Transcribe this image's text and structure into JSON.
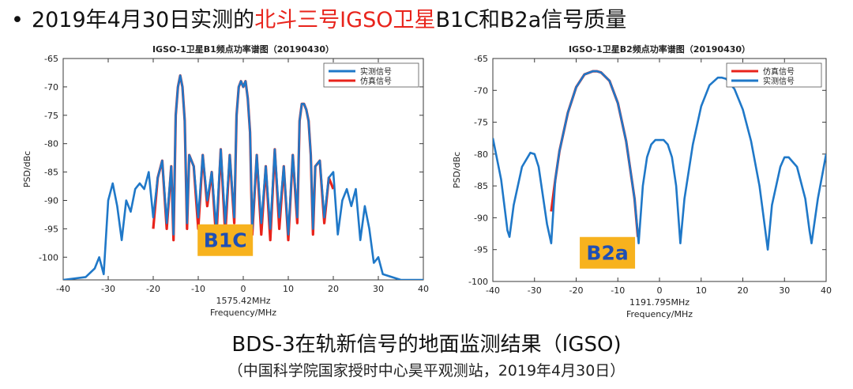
{
  "headline": {
    "bullet": "•",
    "prefix": "2019年4月30日实测的",
    "highlight": "北斗三号IGSO卫星",
    "suffix": "B1C和B2a信号质量",
    "highlight_color": "#e8231b"
  },
  "caption": {
    "main": "BDS-3在轨新信号的地面监测结果（IGSO)",
    "sub": "（中国科学院国家授时中心昊平观测站，2019年4月30日）"
  },
  "colors": {
    "measured": "#1f78c8",
    "simulated": "#e8231b",
    "badge_fill": "#f7b21e",
    "badge_text": "#1f4fb4"
  },
  "chart_data": [
    {
      "type": "line",
      "title": "IGSO-1卫星B1频点功率谱图（20190430）",
      "xlabel": "Frequency/MHz",
      "center_label": "1575.42MHz",
      "ylabel": "PSD/dBc",
      "badge": "B1C",
      "xlim": [
        -40,
        40
      ],
      "ylim": [
        -104,
        -65
      ],
      "xticks": [
        -40,
        -30,
        -20,
        -10,
        0,
        10,
        20,
        30,
        40
      ],
      "yticks": [
        -65,
        -70,
        -75,
        -80,
        -85,
        -90,
        -95,
        -100
      ],
      "legend_position": "top-right",
      "series": [
        {
          "name": "实测信号",
          "color": "#1f78c8",
          "x": [
            -40,
            -35,
            -33,
            -32,
            -31,
            -30,
            -29,
            -28,
            -27,
            -26,
            -25,
            -24,
            -23,
            -22,
            -21,
            -20,
            -19,
            -18,
            -17,
            -16,
            -15.5,
            -15,
            -14.5,
            -14,
            -13.5,
            -13,
            -12.5,
            -12,
            -11,
            -10,
            -9,
            -8,
            -7,
            -6,
            -5,
            -4,
            -3,
            -2,
            -1.5,
            -1,
            -0.5,
            0,
            0.5,
            1,
            1.5,
            2,
            3,
            4,
            5,
            6,
            7,
            8,
            9,
            10,
            11,
            12,
            12.5,
            13,
            13.5,
            14,
            14.5,
            15,
            15.5,
            16,
            17,
            18,
            19,
            20,
            21,
            22,
            23,
            24,
            25,
            26,
            27,
            28,
            29,
            30,
            31,
            33,
            35,
            40
          ],
          "y": [
            -104,
            -103.5,
            -102,
            -100,
            -103,
            -90,
            -87,
            -91,
            -97,
            -90,
            -92,
            -88,
            -87,
            -88,
            -85,
            -93,
            -86,
            -83,
            -94,
            -84,
            -96,
            -75,
            -70,
            -68,
            -70,
            -76,
            -94,
            -82,
            -84,
            -93,
            -82,
            -90,
            -85,
            -95,
            -81,
            -94,
            -82,
            -93,
            -75,
            -70,
            -69,
            -70,
            -69,
            -72,
            -78,
            -95,
            -82,
            -94,
            -84,
            -95,
            -81,
            -93,
            -84,
            -96,
            -82,
            -93,
            -76,
            -73,
            -73,
            -74,
            -76,
            -82,
            -95,
            -84,
            -83,
            -93,
            -86,
            -85,
            -96,
            -90,
            -88,
            -91,
            -88,
            -97,
            -91,
            -95,
            -101,
            -100,
            -103,
            -103.5,
            -104,
            -104
          ]
        },
        {
          "name": "仿真信号",
          "color": "#e8231b",
          "x": [
            -20,
            -19,
            -18,
            -17,
            -16,
            -15.5,
            -15,
            -14.5,
            -14,
            -13.5,
            -13,
            -12.5,
            -12,
            -11,
            -10,
            -9,
            -8,
            -7,
            -6,
            -5,
            -4,
            -3,
            -2,
            -1.5,
            -1,
            -0.5,
            0,
            0.5,
            1,
            1.5,
            2,
            3,
            4,
            5,
            6,
            7,
            8,
            9,
            10,
            11,
            12,
            12.5,
            13,
            13.5,
            14,
            14.5,
            15,
            15.5,
            16,
            17,
            18,
            19,
            20
          ],
          "y": [
            -95,
            -86,
            -83,
            -95,
            -84,
            -97,
            -75,
            -70,
            -68,
            -70,
            -76,
            -95,
            -82,
            -84,
            -95,
            -82,
            -91,
            -85,
            -97,
            -81,
            -96,
            -82,
            -94,
            -75,
            -70,
            -69,
            -70,
            -69,
            -72,
            -78,
            -96,
            -82,
            -96,
            -84,
            -97,
            -81,
            -95,
            -84,
            -97,
            -82,
            -94,
            -76,
            -73,
            -73,
            -74,
            -76,
            -82,
            -96,
            -84,
            -83,
            -94,
            -86,
            -88
          ]
        }
      ]
    },
    {
      "type": "line",
      "title": "IGSO-1卫星B2频点功率谱图（20190430）",
      "xlabel": "Frequency/MHz",
      "center_label": "1191.795MHz",
      "ylabel": "PSD/dBc",
      "badge": "B2a",
      "xlim": [
        -40,
        40
      ],
      "ylim": [
        -100,
        -65
      ],
      "xticks": [
        -40,
        -30,
        -20,
        -10,
        0,
        10,
        20,
        30,
        40
      ],
      "yticks": [
        -65,
        -70,
        -75,
        -80,
        -85,
        -90,
        -95,
        -100
      ],
      "legend_position": "top-right",
      "series": [
        {
          "name": "仿真信号",
          "color": "#e8231b",
          "x": [
            -26,
            -25,
            -24,
            -22,
            -20,
            -18,
            -16,
            -15,
            -14,
            -12,
            -10,
            -8,
            -6,
            -5.2
          ],
          "y": [
            -89,
            -84,
            -79.5,
            -73.5,
            -69.5,
            -67.5,
            -67,
            -67,
            -67.2,
            -68.5,
            -72,
            -78,
            -87,
            -93
          ]
        },
        {
          "name": "实测信号",
          "color": "#1f78c8",
          "x": [
            -40,
            -38,
            -36.5,
            -36,
            -35,
            -33,
            -31,
            -30,
            -29,
            -27,
            -26,
            -25,
            -24,
            -22,
            -20,
            -18,
            -16,
            -15,
            -14,
            -12,
            -10,
            -8,
            -6,
            -5,
            -4,
            -3,
            -2,
            -1,
            0,
            1,
            2,
            3,
            4,
            5,
            6,
            8,
            10,
            12,
            14,
            15,
            16,
            18,
            20,
            22,
            24,
            25,
            26,
            27,
            29,
            30,
            31,
            33,
            35,
            36,
            36.5,
            38,
            40
          ],
          "y": [
            -77.5,
            -84,
            -92,
            -93,
            -88,
            -82,
            -79.8,
            -80,
            -82,
            -91,
            -94,
            -84,
            -79.5,
            -73.5,
            -69.5,
            -67.5,
            -67,
            -67,
            -67.2,
            -68.5,
            -72,
            -78,
            -87,
            -94,
            -85,
            -80.5,
            -78.5,
            -77.8,
            -77.8,
            -77.8,
            -78.5,
            -80.5,
            -85,
            -94,
            -87,
            -78.5,
            -72.5,
            -69.2,
            -68,
            -68,
            -68.2,
            -69.8,
            -73,
            -78,
            -85,
            -90,
            -95,
            -88,
            -82,
            -80.5,
            -80.5,
            -82,
            -87,
            -92,
            -94,
            -87,
            -80
          ]
        }
      ]
    }
  ]
}
